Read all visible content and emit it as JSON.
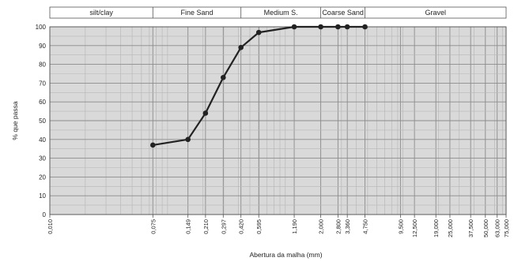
{
  "chart_data": {
    "type": "line",
    "title": "",
    "xlabel": "Abertura da malha (mm)",
    "ylabel": "% que passa",
    "x_scale": "log",
    "xlim": [
      0.01,
      75
    ],
    "ylim": [
      0,
      100
    ],
    "grid": true,
    "y_ticks": [
      0,
      10,
      20,
      30,
      40,
      50,
      60,
      70,
      80,
      90,
      100
    ],
    "x_ticks": [
      "0,010",
      "0,075",
      "0,149",
      "0,210",
      "0,297",
      "0,420",
      "0,595",
      "1,190",
      "2,000",
      "2,800",
      "3,360",
      "4,750",
      "9,500",
      "12,500",
      "19,000",
      "25,000",
      "37,500",
      "50,000",
      "63,000",
      "75,000"
    ],
    "x_tick_values": [
      0.01,
      0.075,
      0.149,
      0.21,
      0.297,
      0.42,
      0.595,
      1.19,
      2.0,
      2.8,
      3.36,
      4.75,
      9.5,
      12.5,
      19.0,
      25.0,
      37.5,
      50.0,
      63.0,
      75.0
    ],
    "soil_classes": [
      {
        "label": "silt/clay",
        "from": 0.01,
        "to": 0.075
      },
      {
        "label": "Fine Sand",
        "from": 0.075,
        "to": 0.42
      },
      {
        "label": "Medium S.",
        "from": 0.42,
        "to": 2.0
      },
      {
        "label": "Coarse Sand",
        "from": 2.0,
        "to": 4.75
      },
      {
        "label": "Gravel",
        "from": 4.75,
        "to": 75.0
      }
    ],
    "series": [
      {
        "x": [
          0.075,
          0.149,
          0.21,
          0.297,
          0.42,
          0.595,
          1.19,
          2.0,
          2.8,
          3.36,
          4.75
        ],
        "y": [
          37,
          40,
          54,
          73,
          89,
          97,
          100,
          100,
          100,
          100,
          100
        ],
        "color": "#222222"
      }
    ]
  }
}
